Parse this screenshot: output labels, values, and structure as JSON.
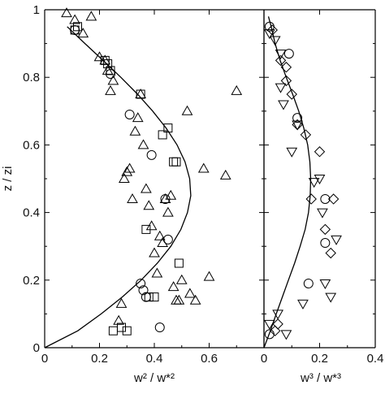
{
  "chart_data": [
    {
      "type": "scatter",
      "panel": "left",
      "xlabel": "w² / w*²",
      "ylabel": "z / zi",
      "xlim": [
        0,
        0.8
      ],
      "ylim": [
        0,
        1
      ],
      "xticks": [
        "0",
        "0.2",
        "0.4",
        "0.6"
      ],
      "yticks": [
        "0",
        "0.2",
        "0.4",
        "0.6",
        "0.8",
        "1"
      ],
      "grid": false,
      "curve": {
        "x": [
          0.0,
          0.121,
          0.206,
          0.283,
          0.352,
          0.411,
          0.46,
          0.497,
          0.521,
          0.533,
          0.529,
          0.512,
          0.483,
          0.443,
          0.394,
          0.339,
          0.278,
          0.213,
          0.147,
          0.082
        ],
        "y": [
          0.0,
          0.05,
          0.1,
          0.15,
          0.2,
          0.25,
          0.3,
          0.35,
          0.4,
          0.45,
          0.5,
          0.55,
          0.6,
          0.65,
          0.7,
          0.75,
          0.8,
          0.85,
          0.9,
          0.95
        ]
      },
      "series": [
        {
          "marker": "circle",
          "x": [
            0.11,
            0.24,
            0.31,
            0.35,
            0.36,
            0.37,
            0.39,
            0.42,
            0.44,
            0.45
          ],
          "y": [
            0.94,
            0.81,
            0.69,
            0.19,
            0.17,
            0.15,
            0.57,
            0.06,
            0.44,
            0.32
          ]
        },
        {
          "marker": "square",
          "x": [
            0.11,
            0.12,
            0.22,
            0.23,
            0.24,
            0.25,
            0.28,
            0.3,
            0.35,
            0.37,
            0.38,
            0.4,
            0.43,
            0.45,
            0.47,
            0.48,
            0.49
          ],
          "y": [
            0.94,
            0.95,
            0.85,
            0.84,
            0.82,
            0.05,
            0.06,
            0.05,
            0.75,
            0.35,
            0.15,
            0.15,
            0.63,
            0.65,
            0.55,
            0.55,
            0.25
          ]
        },
        {
          "marker": "triangle-up",
          "x": [
            0.08,
            0.11,
            0.14,
            0.17,
            0.2,
            0.22,
            0.23,
            0.24,
            0.25,
            0.27,
            0.28,
            0.29,
            0.3,
            0.31,
            0.32,
            0.33,
            0.34,
            0.35,
            0.36,
            0.37,
            0.38,
            0.39,
            0.4,
            0.41,
            0.42,
            0.43,
            0.44,
            0.45,
            0.46,
            0.47,
            0.48,
            0.49,
            0.5,
            0.52,
            0.53,
            0.55,
            0.58,
            0.6,
            0.66,
            0.7
          ],
          "y": [
            0.99,
            0.97,
            0.93,
            0.98,
            0.86,
            0.85,
            0.82,
            0.76,
            0.79,
            0.08,
            0.13,
            0.5,
            0.52,
            0.53,
            0.44,
            0.64,
            0.68,
            0.75,
            0.6,
            0.47,
            0.42,
            0.36,
            0.28,
            0.22,
            0.33,
            0.31,
            0.44,
            0.4,
            0.45,
            0.18,
            0.14,
            0.14,
            0.2,
            0.7,
            0.16,
            0.14,
            0.53,
            0.21,
            0.51,
            0.76
          ]
        }
      ]
    },
    {
      "type": "scatter",
      "panel": "right",
      "xlabel": "w³ / w*³",
      "xlim": [
        0,
        0.4
      ],
      "ylim": [
        0,
        1
      ],
      "xticks": [
        "0",
        "0.2",
        "0.4"
      ],
      "grid": false,
      "curve": {
        "x": [
          0.0,
          0.023,
          0.044,
          0.066,
          0.088,
          0.11,
          0.13,
          0.148,
          0.16,
          0.166,
          0.168,
          0.165,
          0.157,
          0.143,
          0.125,
          0.103,
          0.08,
          0.058,
          0.04,
          0.026,
          0.016
        ],
        "y": [
          0.0,
          0.05,
          0.1,
          0.15,
          0.2,
          0.25,
          0.3,
          0.35,
          0.4,
          0.45,
          0.5,
          0.55,
          0.6,
          0.65,
          0.7,
          0.75,
          0.8,
          0.85,
          0.9,
          0.95,
          0.98
        ]
      },
      "series": [
        {
          "marker": "circle",
          "x": [
            0.02,
            0.02,
            0.09,
            0.12,
            0.16,
            0.22,
            0.22
          ],
          "y": [
            0.95,
            0.04,
            0.87,
            0.68,
            0.19,
            0.44,
            0.31
          ]
        },
        {
          "marker": "diamond",
          "x": [
            0.03,
            0.04,
            0.05,
            0.06,
            0.08,
            0.08,
            0.1,
            0.12,
            0.15,
            0.17,
            0.2,
            0.22,
            0.24,
            0.25
          ],
          "y": [
            0.94,
            0.05,
            0.07,
            0.85,
            0.83,
            0.79,
            0.75,
            0.66,
            0.63,
            0.44,
            0.58,
            0.35,
            0.28,
            0.44
          ]
        },
        {
          "marker": "triangle-down",
          "x": [
            0.02,
            0.02,
            0.04,
            0.05,
            0.06,
            0.06,
            0.07,
            0.08,
            0.1,
            0.12,
            0.14,
            0.18,
            0.2,
            0.21,
            0.22,
            0.24,
            0.26
          ],
          "y": [
            0.07,
            0.93,
            0.91,
            0.1,
            0.87,
            0.77,
            0.72,
            0.04,
            0.58,
            0.66,
            0.13,
            0.49,
            0.5,
            0.4,
            0.19,
            0.15,
            0.32
          ]
        }
      ]
    }
  ]
}
